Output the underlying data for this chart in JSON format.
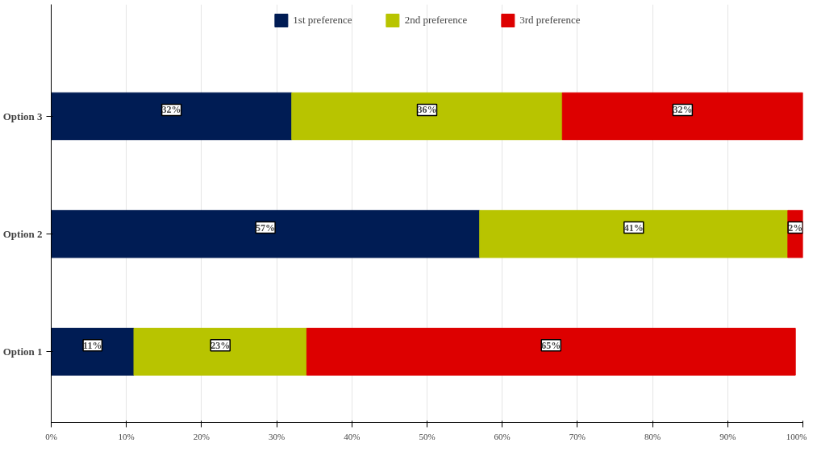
{
  "chart_data": {
    "type": "bar",
    "orientation": "horizontal",
    "stacked": true,
    "categories": [
      "Option 3",
      "Option 2",
      "Option 1"
    ],
    "series": [
      {
        "name": "1st preference",
        "color": "#001c54",
        "values": [
          32,
          57,
          11
        ],
        "value_labels": [
          "32%",
          "57%",
          "11%"
        ]
      },
      {
        "name": "2nd preference",
        "color": "#b8c400",
        "values": [
          36,
          41,
          23
        ],
        "value_labels": [
          "36%",
          "41%",
          "23%"
        ]
      },
      {
        "name": "3rd preference",
        "color": "#dd0000",
        "values": [
          32,
          2,
          65
        ],
        "value_labels": [
          "32%",
          "2%",
          "65%"
        ]
      }
    ],
    "xlim": [
      0,
      100
    ],
    "xticks": [
      {
        "value": 0,
        "label": "0%"
      },
      {
        "value": 10,
        "label": "10%"
      },
      {
        "value": 20,
        "label": "20%"
      },
      {
        "value": 30,
        "label": "30%"
      },
      {
        "value": 40,
        "label": "40%"
      },
      {
        "value": 50,
        "label": "50%"
      },
      {
        "value": 60,
        "label": "60%"
      },
      {
        "value": 70,
        "label": "70%"
      },
      {
        "value": 80,
        "label": "80%"
      },
      {
        "value": 90,
        "label": "90%"
      },
      {
        "value": 100,
        "label": "100%"
      }
    ],
    "grid": "x",
    "legend": "top"
  }
}
